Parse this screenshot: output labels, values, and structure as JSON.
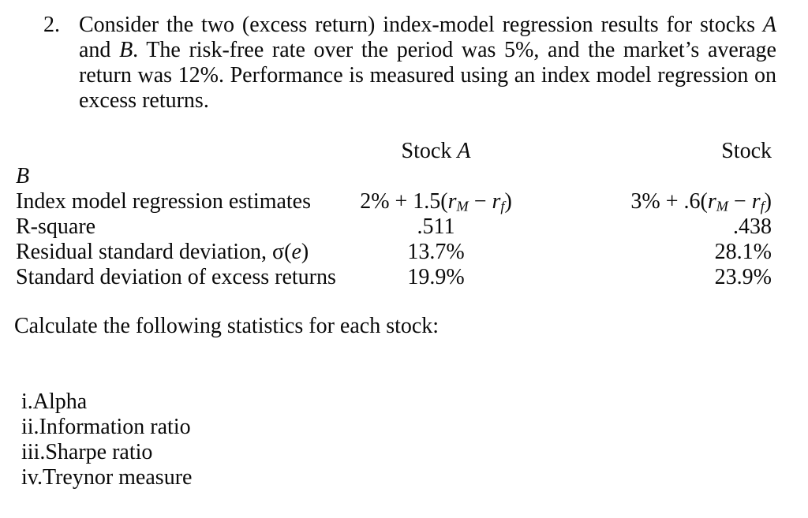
{
  "page": {
    "background": "#ffffff",
    "text_color": "#0a0a0a"
  },
  "problem": {
    "number": "2.",
    "lines": [
      {
        "pre": "Consider the two (excess return) index-model regression results for stocks ",
        "em": "A",
        "post": ""
      },
      {
        "pre": "and ",
        "em": "B",
        "post": ". The risk-free rate over the period was 5%, and the market’s average"
      },
      {
        "pre": "return was 12%. Performance is measured using an index model regression on",
        "em": "",
        "post": ""
      },
      {
        "pre": "excess returns.",
        "em": "",
        "post": ""
      }
    ]
  },
  "results_table": {
    "header": {
      "stock_a_pre": "Stock ",
      "stock_a_em": "A",
      "stock_b": "Stock",
      "stock_b_wrapped_em": "B"
    },
    "rows": [
      {
        "label_pre": "Index model regression estimates",
        "label_em": "",
        "label_post": "",
        "a_formula": {
          "head": "2% + 1.5(",
          "var1": "r",
          "sub1": "M",
          "op": " − ",
          "var2": "r",
          "sub2": "f",
          "tail": ")"
        },
        "b_formula": {
          "head": "3% + .6(",
          "var1": "r",
          "sub1": "M",
          "op": " − ",
          "var2": "r",
          "sub2": "f",
          "tail": ")"
        }
      },
      {
        "label_pre": "R-square",
        "label_em": "",
        "label_post": "",
        "a": ".511",
        "b": ".438"
      },
      {
        "label_pre": "Residual standard deviation, σ(",
        "label_em": "e",
        "label_post": ")",
        "a": "13.7%",
        "b": "28.1%"
      },
      {
        "label_pre": "Standard deviation of excess returns",
        "label_em": "",
        "label_post": "",
        "a": "19.9%",
        "b": "23.9%"
      }
    ]
  },
  "instruction": "Calculate the following statistics for each stock:",
  "statistics_list": [
    "i.Alpha",
    "ii.Information ratio",
    "iii.Sharpe ratio",
    "iv.Treynor measure"
  ]
}
